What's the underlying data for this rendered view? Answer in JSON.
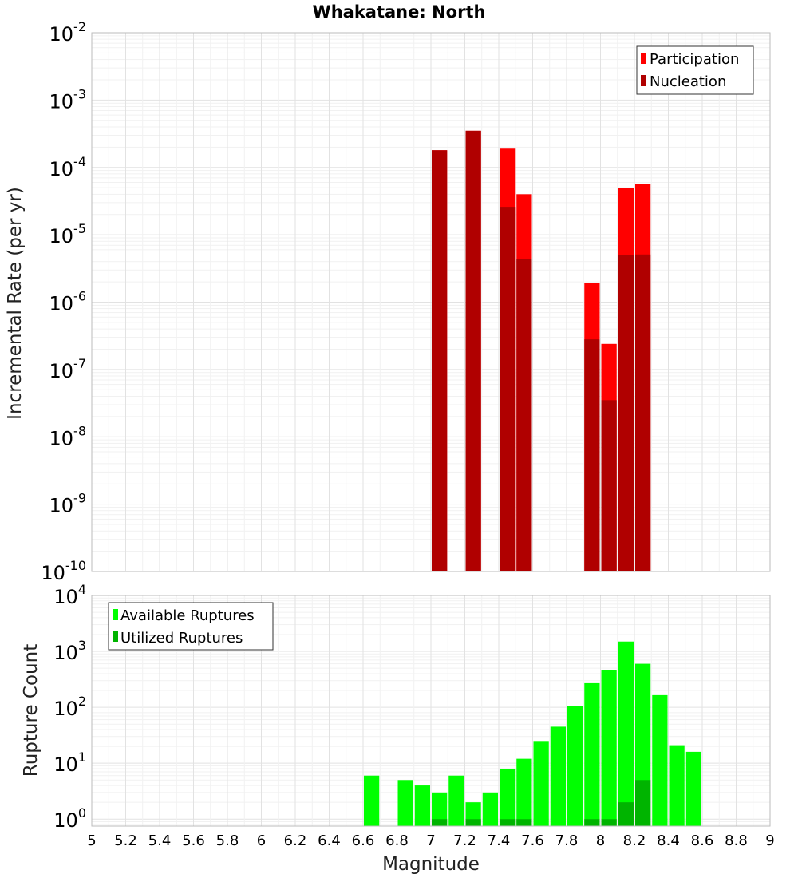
{
  "chart_data": [
    {
      "type": "bar",
      "title": "Whakatane: North",
      "xlabel": "",
      "ylabel": "Incremental Rate (per yr)",
      "yscale": "log",
      "ylim": [
        1e-10,
        0.01
      ],
      "xlim": [
        5,
        9
      ],
      "bar_width": 0.1,
      "grid": true,
      "legend_position": "top-right",
      "ytick_labels": [
        {
          "value": 1e-10,
          "base": "10",
          "exp": "-10"
        },
        {
          "value": 1e-09,
          "base": "10",
          "exp": "-9"
        },
        {
          "value": 1e-08,
          "base": "10",
          "exp": "-8"
        },
        {
          "value": 1e-07,
          "base": "10",
          "exp": "-7"
        },
        {
          "value": 1e-06,
          "base": "10",
          "exp": "-6"
        },
        {
          "value": 1e-05,
          "base": "10",
          "exp": "-5"
        },
        {
          "value": 0.0001,
          "base": "10",
          "exp": "-4"
        },
        {
          "value": 0.001,
          "base": "10",
          "exp": "-3"
        },
        {
          "value": 0.01,
          "base": "10",
          "exp": "-2"
        }
      ],
      "series": [
        {
          "name": "Participation",
          "color": "#ff0000",
          "x": [
            7.05,
            7.25,
            7.45,
            7.55,
            7.95,
            8.05,
            8.15,
            8.25
          ],
          "values": [
            0.00018,
            0.00035,
            0.00019,
            4e-05,
            1.9e-06,
            2.4e-07,
            5e-05,
            5.7e-05
          ]
        },
        {
          "name": "Nucleation",
          "color": "#b00000",
          "x": [
            7.05,
            7.25,
            7.45,
            7.55,
            7.95,
            8.05,
            8.15,
            8.25
          ],
          "values": [
            0.00018,
            0.00035,
            2.6e-05,
            4.4e-06,
            2.8e-07,
            3.5e-08,
            5e-06,
            5.1e-06
          ]
        }
      ]
    },
    {
      "type": "bar",
      "title": "",
      "xlabel": "Magnitude",
      "ylabel": "Rupture Count",
      "yscale": "log",
      "ylim": [
        0.75,
        10000
      ],
      "xlim": [
        5,
        9
      ],
      "bar_width": 0.1,
      "grid": true,
      "legend_position": "top-left",
      "xtick_labels": [
        "5",
        "5.2",
        "5.4",
        "5.6",
        "5.8",
        "6",
        "6.2",
        "6.4",
        "6.6",
        "6.8",
        "7",
        "7.2",
        "7.4",
        "7.6",
        "7.8",
        "8",
        "8.2",
        "8.4",
        "8.6",
        "8.8",
        "9"
      ],
      "ytick_labels": [
        {
          "value": 1,
          "base": "10",
          "exp": "0"
        },
        {
          "value": 10,
          "base": "10",
          "exp": "1"
        },
        {
          "value": 100,
          "base": "10",
          "exp": "2"
        },
        {
          "value": 1000,
          "base": "10",
          "exp": "3"
        },
        {
          "value": 10000,
          "base": "10",
          "exp": "4"
        }
      ],
      "series": [
        {
          "name": "Available Ruptures",
          "color": "#00ff00",
          "x": [
            6.65,
            6.85,
            6.95,
            7.05,
            7.15,
            7.25,
            7.35,
            7.45,
            7.55,
            7.65,
            7.75,
            7.85,
            7.95,
            8.05,
            8.15,
            8.25,
            8.35,
            8.45,
            8.55
          ],
          "values": [
            6,
            5,
            4,
            3,
            6,
            2,
            3,
            8,
            12,
            25,
            45,
            105,
            270,
            460,
            1500,
            600,
            165,
            21,
            16
          ]
        },
        {
          "name": "Utilized Ruptures",
          "color": "#00b400",
          "x": [
            7.05,
            7.25,
            7.45,
            7.55,
            7.95,
            8.05,
            8.15,
            8.25
          ],
          "values": [
            1,
            1,
            1,
            1,
            1,
            1,
            2,
            5
          ]
        }
      ]
    }
  ]
}
